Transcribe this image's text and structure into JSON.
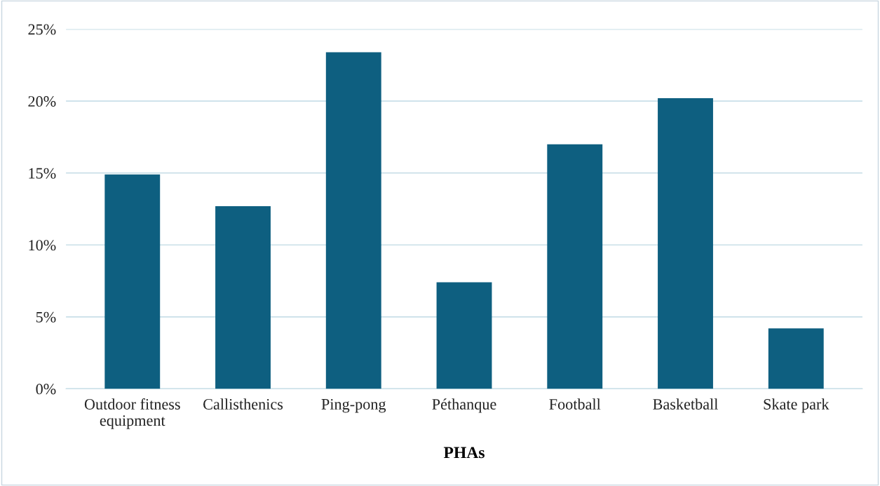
{
  "chart_data": {
    "type": "bar",
    "xlabel": "PHAs",
    "categories": [
      "Outdoor fitness\nequipment",
      "Callisthenics",
      "Ping-pong",
      "Péthanque",
      "Football",
      "Basketball",
      "Skate park"
    ],
    "values": [
      14.9,
      12.7,
      23.4,
      7.4,
      17.0,
      20.2,
      4.2
    ],
    "color": "#0e5f80",
    "ylim": [
      0,
      25
    ],
    "yticks": [
      {
        "value": 0,
        "label": "0%"
      },
      {
        "value": 5,
        "label": "5%"
      },
      {
        "value": 10,
        "label": "10%"
      },
      {
        "value": 15,
        "label": "15%"
      },
      {
        "value": 20,
        "label": "20%"
      },
      {
        "value": 25,
        "label": "25%"
      }
    ],
    "grid": "y"
  }
}
